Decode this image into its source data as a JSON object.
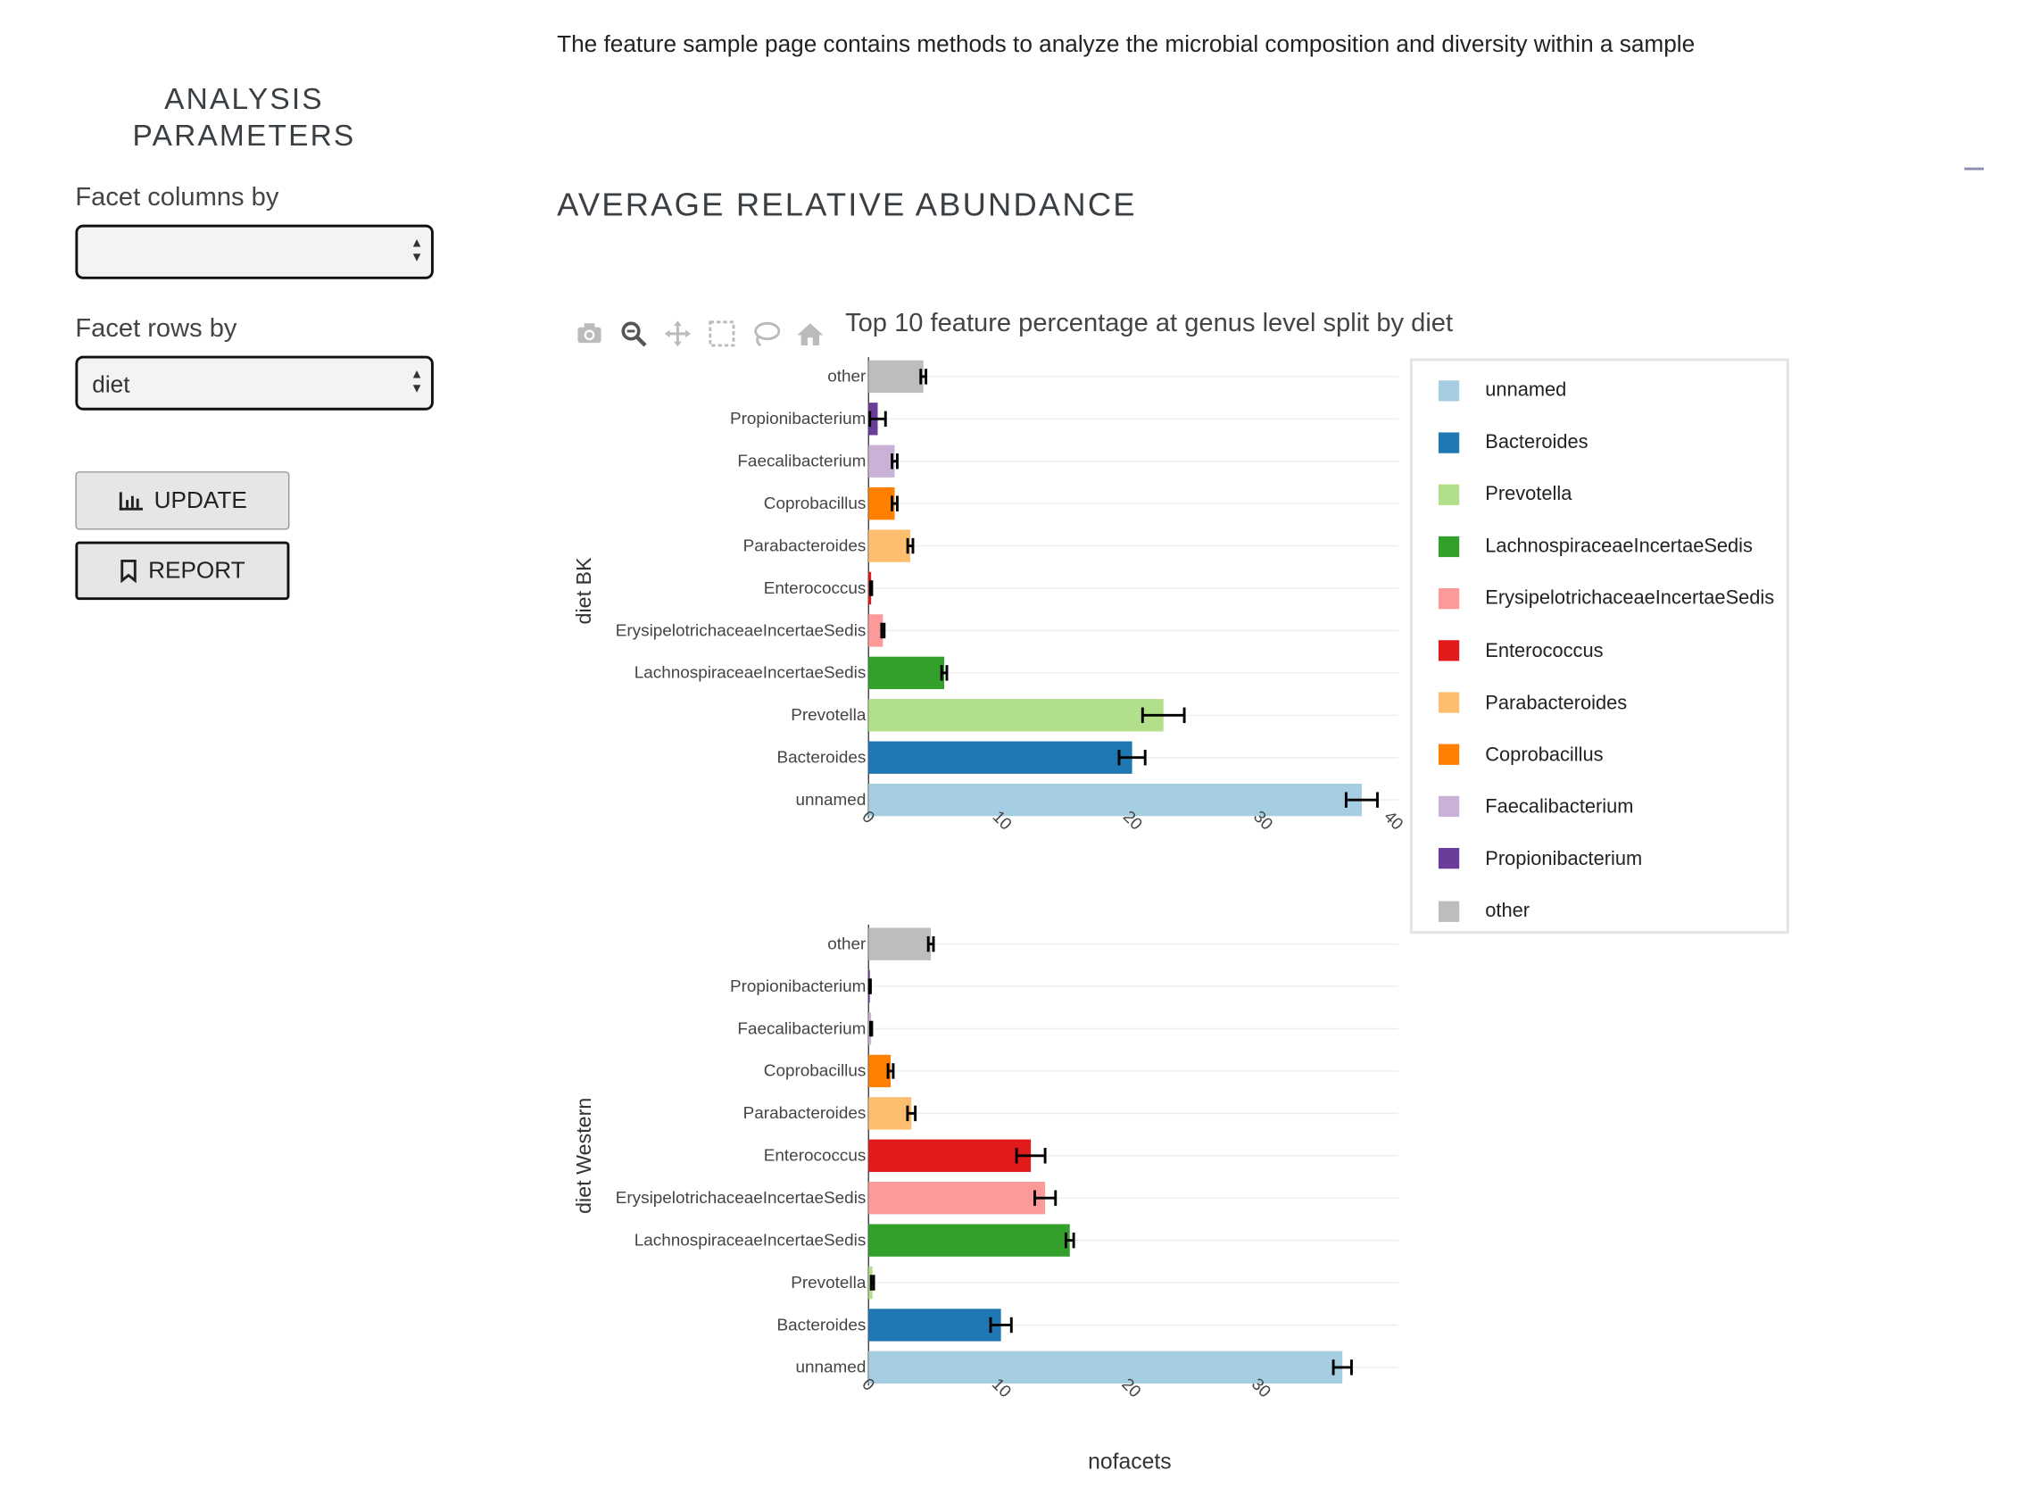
{
  "description": "The feature sample page contains methods to analyze the microbial composition and diversity within a sample",
  "sidebar": {
    "title_line1": "ANALYSIS",
    "title_line2": "PARAMETERS",
    "facet_columns_label": "Facet columns by",
    "facet_columns_value": "",
    "facet_rows_label": "Facet rows by",
    "facet_rows_value": "diet",
    "update_label": "UPDATE",
    "report_label": "REPORT"
  },
  "section_title": "AVERAGE RELATIVE ABUNDANCE",
  "modebar_icons": [
    "camera-icon",
    "zoom-icon",
    "pan-icon",
    "box-select-icon",
    "lasso-select-icon",
    "home-icon"
  ],
  "chart_data": {
    "type": "bar",
    "orientation": "horizontal",
    "title": "Top 10 feature percentage at genus level split by diet",
    "xlabel": "nofacets",
    "categories": [
      "unnamed",
      "Bacteroides",
      "Prevotella",
      "LachnospiraceaeIncertaeSedis",
      "ErysipelotrichaceaeIncertaeSedis",
      "Enterococcus",
      "Parabacteroides",
      "Coprobacillus",
      "Faecalibacterium",
      "Propionibacterium",
      "other"
    ],
    "colors": [
      "#a6cee3",
      "#1f78b4",
      "#b2df8a",
      "#33a02c",
      "#fb9a99",
      "#e31a1c",
      "#fdbf6f",
      "#ff7f00",
      "#cab2d6",
      "#6a3d9a",
      "#bdbdbd"
    ],
    "legend_position": "right",
    "facets": [
      {
        "label": "diet BK",
        "xlim": [
          0,
          40
        ],
        "xticks": [
          0,
          10,
          20,
          30,
          40
        ],
        "values": [
          37.8,
          20.2,
          22.6,
          5.8,
          1.1,
          0.2,
          3.2,
          2.0,
          2.0,
          0.7,
          4.2
        ],
        "errors": [
          1.2,
          1.0,
          1.6,
          0.2,
          0.1,
          0.05,
          0.2,
          0.2,
          0.2,
          0.6,
          0.2
        ]
      },
      {
        "label": "diet Western",
        "xlim": [
          0,
          39
        ],
        "xticks": [
          0,
          10,
          20,
          30
        ],
        "values": [
          36.5,
          10.2,
          0.3,
          15.5,
          13.6,
          12.5,
          3.3,
          1.7,
          0.2,
          0.1,
          4.8
        ],
        "errors": [
          0.7,
          0.8,
          0.1,
          0.3,
          0.8,
          1.1,
          0.3,
          0.2,
          0.05,
          0.05,
          0.2
        ]
      }
    ]
  }
}
